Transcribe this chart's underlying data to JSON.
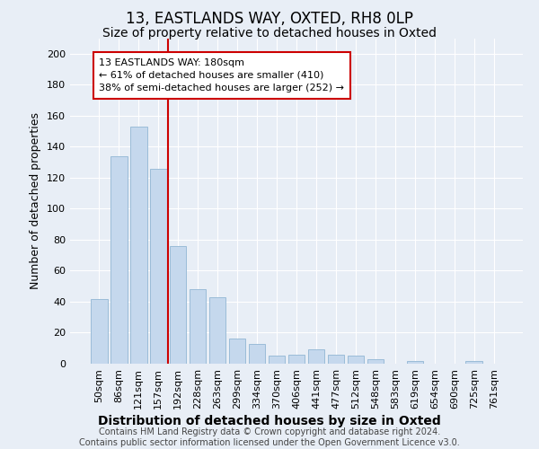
{
  "title": "13, EASTLANDS WAY, OXTED, RH8 0LP",
  "subtitle": "Size of property relative to detached houses in Oxted",
  "xlabel": "Distribution of detached houses by size in Oxted",
  "ylabel": "Number of detached properties",
  "categories": [
    "50sqm",
    "86sqm",
    "121sqm",
    "157sqm",
    "192sqm",
    "228sqm",
    "263sqm",
    "299sqm",
    "334sqm",
    "370sqm",
    "406sqm",
    "441sqm",
    "477sqm",
    "512sqm",
    "548sqm",
    "583sqm",
    "619sqm",
    "654sqm",
    "690sqm",
    "725sqm",
    "761sqm"
  ],
  "values": [
    42,
    134,
    153,
    126,
    76,
    48,
    43,
    16,
    13,
    5,
    6,
    9,
    6,
    5,
    3,
    0,
    2,
    0,
    0,
    2,
    0
  ],
  "bar_color": "#c5d8ed",
  "bar_edge_color": "#9bbcd8",
  "vline_x": 3.5,
  "vline_color": "#cc0000",
  "annotation_text": "13 EASTLANDS WAY: 180sqm\n← 61% of detached houses are smaller (410)\n38% of semi-detached houses are larger (252) →",
  "annotation_box_color": "white",
  "annotation_box_edge_color": "#cc0000",
  "ylim": [
    0,
    210
  ],
  "yticks": [
    0,
    20,
    40,
    60,
    80,
    100,
    120,
    140,
    160,
    180,
    200
  ],
  "footer": "Contains HM Land Registry data © Crown copyright and database right 2024.\nContains public sector information licensed under the Open Government Licence v3.0.",
  "background_color": "#e8eef6",
  "plot_bg_color": "#e8eef6",
  "grid_color": "#ffffff",
  "title_fontsize": 12,
  "subtitle_fontsize": 10,
  "xlabel_fontsize": 10,
  "ylabel_fontsize": 9,
  "tick_fontsize": 8,
  "annotation_fontsize": 8,
  "footer_fontsize": 7
}
